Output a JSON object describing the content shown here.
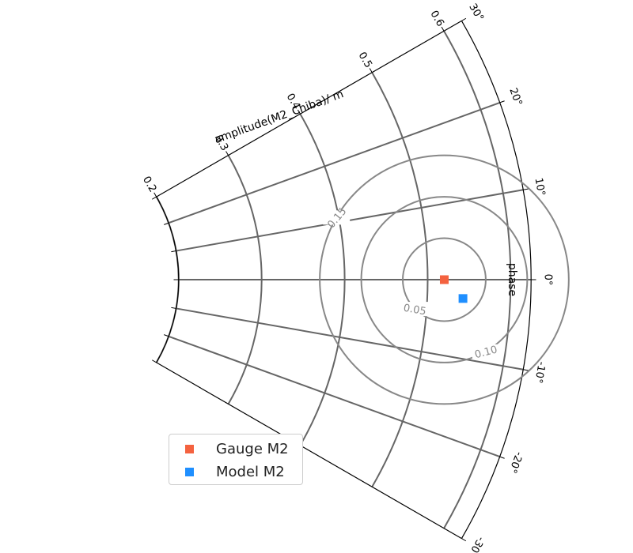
{
  "chart_data": {
    "type": "scatter",
    "projection": "polar-sector (Taylor-style amplitude/phase diagram)",
    "radial_axis": {
      "label": "amplitude(M2_Chiba)/ m",
      "ticks": [
        0.2,
        0.3,
        0.4,
        0.5,
        0.6
      ],
      "tick_labels": [
        "0.2",
        "0.3",
        "0.4",
        "0.5",
        "0.6"
      ],
      "range": [
        0.2,
        0.65
      ]
    },
    "angular_axis": {
      "label": "phase",
      "ticks": [
        -30,
        -20,
        -10,
        0,
        10,
        20,
        30
      ],
      "tick_labels": [
        "-30°",
        "-20°",
        "-10°",
        "0°",
        "10°",
        "20°",
        "30°"
      ],
      "range": [
        -30,
        30
      ]
    },
    "grid": true,
    "contours": {
      "center": {
        "amplitude": 0.52,
        "phase": 0
      },
      "levels": [
        0.05,
        0.1,
        0.15
      ],
      "labels": [
        "0.05",
        "0.10",
        "0.15"
      ]
    },
    "series": [
      {
        "name": "Gauge M2",
        "marker": "square",
        "color": "#f4623f",
        "points": [
          {
            "amplitude": 0.52,
            "phase": 0
          }
        ]
      },
      {
        "name": "Model M2",
        "marker": "square",
        "color": "#1f8fff",
        "points": [
          {
            "amplitude": 0.543,
            "phase": -2.4
          }
        ]
      }
    ],
    "legend": {
      "placement": "lower-left"
    }
  }
}
